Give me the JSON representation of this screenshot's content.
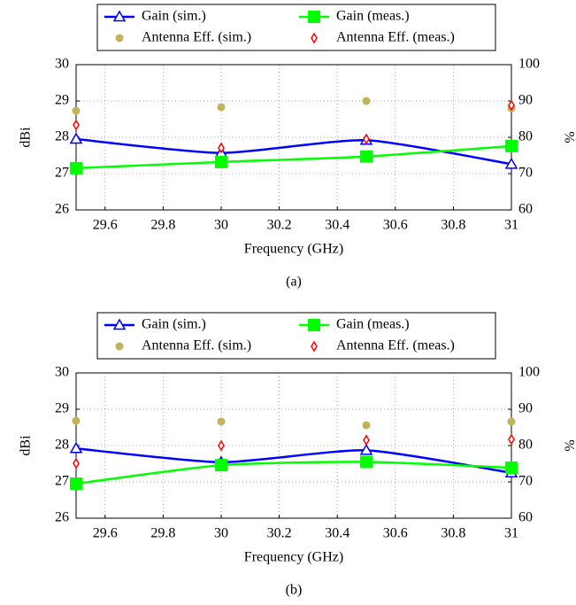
{
  "chart_data": [
    {
      "type": "line",
      "caption": "(a)",
      "xlabel": "Frequency (GHz)",
      "ylabel": "dBi",
      "y2label": "%",
      "x": [
        29.5,
        30,
        30.5,
        31
      ],
      "xlim": [
        29.5,
        31
      ],
      "xticks": [
        29.6,
        29.8,
        30,
        30.2,
        30.4,
        30.6,
        30.8,
        31
      ],
      "ylim": [
        26,
        30
      ],
      "yticks": [
        26,
        27,
        28,
        29,
        30
      ],
      "y2lim": [
        60,
        100
      ],
      "y2ticks": [
        60,
        70,
        80,
        90,
        100
      ],
      "grid": true,
      "series": [
        {
          "name": "Gain (sim.)",
          "color": "#0000ff",
          "marker": "triangle",
          "line": true,
          "values": [
            27.95,
            27.57,
            27.92,
            27.26
          ]
        },
        {
          "name": "Gain (meas.)",
          "color": "#00ff00",
          "marker": "square",
          "line": true,
          "values": [
            27.15,
            27.32,
            27.47,
            27.76
          ]
        },
        {
          "name": "Antenna Eff. (sim.)",
          "color": "#c2b25a",
          "marker": "circle",
          "line": false,
          "axis": "y2",
          "values": [
            87.3,
            88.3,
            90,
            88
          ]
        },
        {
          "name": "Antenna Eff. (meas.)",
          "color": "#ff0000",
          "marker": "diamond",
          "line": false,
          "axis": "y2",
          "values": [
            83.4,
            77.1,
            79.5,
            88.8
          ]
        }
      ]
    },
    {
      "type": "line",
      "caption": "(b)",
      "xlabel": "Frequency (GHz)",
      "ylabel": "dBi",
      "y2label": "%",
      "x": [
        29.5,
        30,
        30.5,
        31
      ],
      "xlim": [
        29.5,
        31
      ],
      "xticks": [
        29.6,
        29.8,
        30,
        30.2,
        30.4,
        30.6,
        30.8,
        31
      ],
      "ylim": [
        26,
        30
      ],
      "yticks": [
        26,
        27,
        28,
        29,
        30
      ],
      "y2lim": [
        60,
        100
      ],
      "y2ticks": [
        60,
        70,
        80,
        90,
        100
      ],
      "grid": true,
      "series": [
        {
          "name": "Gain (sim.)",
          "color": "#0000ff",
          "marker": "triangle",
          "line": true,
          "values": [
            27.92,
            27.54,
            27.87,
            27.25
          ]
        },
        {
          "name": "Gain (meas.)",
          "color": "#00ff00",
          "marker": "square",
          "line": true,
          "values": [
            26.95,
            27.46,
            27.55,
            27.39
          ]
        },
        {
          "name": "Antenna Eff. (sim.)",
          "color": "#c2b25a",
          "marker": "circle",
          "line": false,
          "axis": "y2",
          "values": [
            86.8,
            86.6,
            85.6,
            86.6
          ]
        },
        {
          "name": "Antenna Eff. (meas.)",
          "color": "#ff0000",
          "marker": "diamond",
          "line": false,
          "axis": "y2",
          "values": [
            75.1,
            80,
            81.5,
            81.7
          ]
        }
      ]
    }
  ]
}
